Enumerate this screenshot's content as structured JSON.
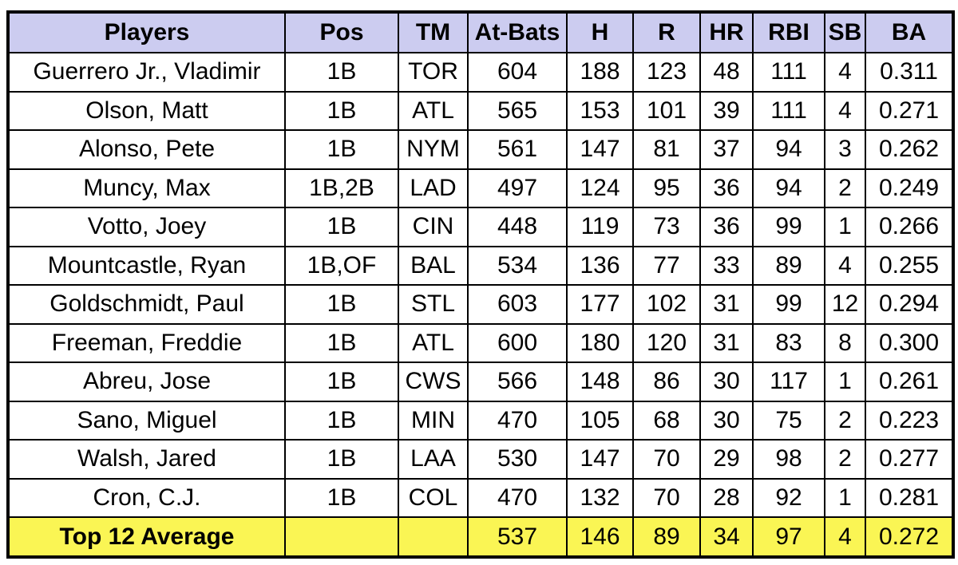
{
  "chart_data": {
    "type": "table",
    "title": "",
    "columns": [
      "Players",
      "Pos",
      "TM",
      "At-Bats",
      "H",
      "R",
      "HR",
      "RBI",
      "SB",
      "BA"
    ],
    "rows": [
      [
        "Guerrero Jr., Vladimir",
        "1B",
        "TOR",
        "604",
        "188",
        "123",
        "48",
        "111",
        "4",
        "0.311"
      ],
      [
        "Olson, Matt",
        "1B",
        "ATL",
        "565",
        "153",
        "101",
        "39",
        "111",
        "4",
        "0.271"
      ],
      [
        "Alonso, Pete",
        "1B",
        "NYM",
        "561",
        "147",
        "81",
        "37",
        "94",
        "3",
        "0.262"
      ],
      [
        "Muncy, Max",
        "1B,2B",
        "LAD",
        "497",
        "124",
        "95",
        "36",
        "94",
        "2",
        "0.249"
      ],
      [
        "Votto, Joey",
        "1B",
        "CIN",
        "448",
        "119",
        "73",
        "36",
        "99",
        "1",
        "0.266"
      ],
      [
        "Mountcastle, Ryan",
        "1B,OF",
        "BAL",
        "534",
        "136",
        "77",
        "33",
        "89",
        "4",
        "0.255"
      ],
      [
        "Goldschmidt, Paul",
        "1B",
        "STL",
        "603",
        "177",
        "102",
        "31",
        "99",
        "12",
        "0.294"
      ],
      [
        "Freeman, Freddie",
        "1B",
        "ATL",
        "600",
        "180",
        "120",
        "31",
        "83",
        "8",
        "0.300"
      ],
      [
        "Abreu, Jose",
        "1B",
        "CWS",
        "566",
        "148",
        "86",
        "30",
        "117",
        "1",
        "0.261"
      ],
      [
        "Sano, Miguel",
        "1B",
        "MIN",
        "470",
        "105",
        "68",
        "30",
        "75",
        "2",
        "0.223"
      ],
      [
        "Walsh, Jared",
        "1B",
        "LAA",
        "530",
        "147",
        "70",
        "29",
        "98",
        "2",
        "0.277"
      ],
      [
        "Cron, C.J.",
        "1B",
        "COL",
        "470",
        "132",
        "70",
        "28",
        "92",
        "1",
        "0.281"
      ]
    ],
    "footer_row": [
      "Top 12 Average",
      "",
      "",
      "537",
      "146",
      "89",
      "34",
      "97",
      "4",
      "0.272"
    ],
    "colors": {
      "header_bg": "#ccccf0",
      "footer_bg": "#faf554",
      "border": "#000000",
      "row_bg": "#ffffff"
    }
  }
}
